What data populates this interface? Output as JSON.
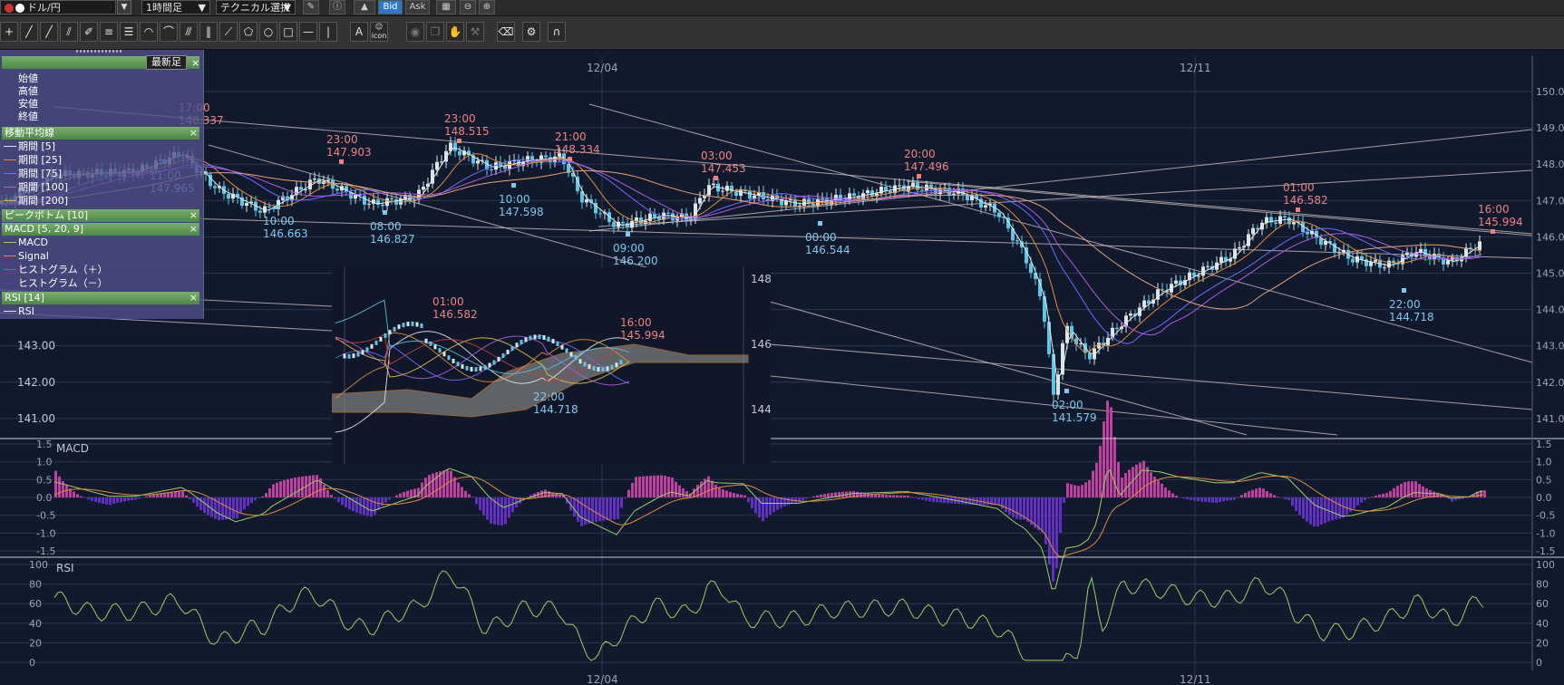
{
  "toolbar": {
    "pair": "ドル/円",
    "timeframe": "1時間足",
    "technical": "テクニカル選択",
    "bid": "Bid",
    "ask": "Ask",
    "icon_label": "icon"
  },
  "panel": {
    "newest_label": "最新足",
    "ohlc": [
      "始値",
      "高値",
      "安値",
      "終値"
    ],
    "ma_header": "移動平均線",
    "ma_items": [
      "期間 [5]",
      "期間 [25]",
      "期間 [75]",
      "期間 [100]",
      "期間 [200]"
    ],
    "ma_colors": [
      "#e6e6e6",
      "#e08a3a",
      "#6a6aff",
      "#b05ae0",
      "#e8a070"
    ],
    "peak_header": "ピークボトム [10]",
    "macd_header": "MACD [5, 20, 9]",
    "macd_items": [
      "MACD",
      "Signal",
      "ヒストグラム（＋）",
      "ヒストグラム（－）"
    ],
    "rsi_header": "RSI [14]",
    "rsi_items": [
      "RSI"
    ],
    "close_symbol": "×"
  },
  "main_chart": {
    "date_labels": [
      "12/04",
      "12/11"
    ],
    "y_ticks": [
      "150.00",
      "149.00",
      "148.00",
      "147.00",
      "146.00",
      "145.00",
      "144.00",
      "143.00",
      "142.00",
      "141.00"
    ],
    "left_y_ticks": [
      "143.00",
      "142.00",
      "141.00"
    ],
    "peak_labels": [
      {
        "time": "17:00",
        "price": "148.337",
        "kind": "high"
      },
      {
        "time": "23:00",
        "price": "147.903",
        "kind": "high"
      },
      {
        "time": "23:00",
        "price": "148.515",
        "kind": "high"
      },
      {
        "time": "21:00",
        "price": "148.334",
        "kind": "high"
      },
      {
        "time": "03:00",
        "price": "147.453",
        "kind": "high"
      },
      {
        "time": "20:00",
        "price": "147.496",
        "kind": "high"
      },
      {
        "time": "01:00",
        "price": "146.582",
        "kind": "high"
      },
      {
        "time": "16:00",
        "price": "145.994",
        "kind": "high"
      },
      {
        "time": "11:00",
        "price": "147.965",
        "kind": "low"
      },
      {
        "time": "10:00",
        "price": "146.663",
        "kind": "low"
      },
      {
        "time": "08:00",
        "price": "146.827",
        "kind": "low"
      },
      {
        "time": "10:00",
        "price": "147.598",
        "kind": "low"
      },
      {
        "time": "09:00",
        "price": "146.200",
        "kind": "low"
      },
      {
        "time": "00:00",
        "price": "146.544",
        "kind": "low"
      },
      {
        "time": "02:00",
        "price": "141.579",
        "kind": "low"
      },
      {
        "time": "22:00",
        "price": "144.718",
        "kind": "low"
      }
    ]
  },
  "inset_chart": {
    "y_ticks": [
      "148",
      "146",
      "144"
    ],
    "peak_labels": [
      {
        "time": "01:00",
        "price": "146.582",
        "kind": "high"
      },
      {
        "time": "16:00",
        "price": "145.994",
        "kind": "high"
      },
      {
        "time": "22:00",
        "price": "144.718",
        "kind": "low"
      }
    ]
  },
  "macd_panel": {
    "title": "MACD",
    "y_ticks": [
      "1.5",
      "1.0",
      "0.5",
      "0.0",
      "-0.5",
      "-1.0",
      "-1.5"
    ]
  },
  "rsi_panel": {
    "title": "RSI",
    "y_ticks": [
      "100",
      "80",
      "60",
      "40",
      "20",
      "0"
    ]
  },
  "bottom_dates": [
    "12/04",
    "12/11"
  ],
  "colors": {
    "background": "#111a2c",
    "bull_candle": "#d6e6e6",
    "bear_candle": "#5cc6e6",
    "high_label": "#f08080",
    "low_label": "#7ec8f0",
    "rsi_line": "#9acd62",
    "macd_line": "#9acd62",
    "signal_line": "#e08a3a",
    "hist_pos": "#c040a0",
    "hist_neg": "#6030c0"
  }
}
